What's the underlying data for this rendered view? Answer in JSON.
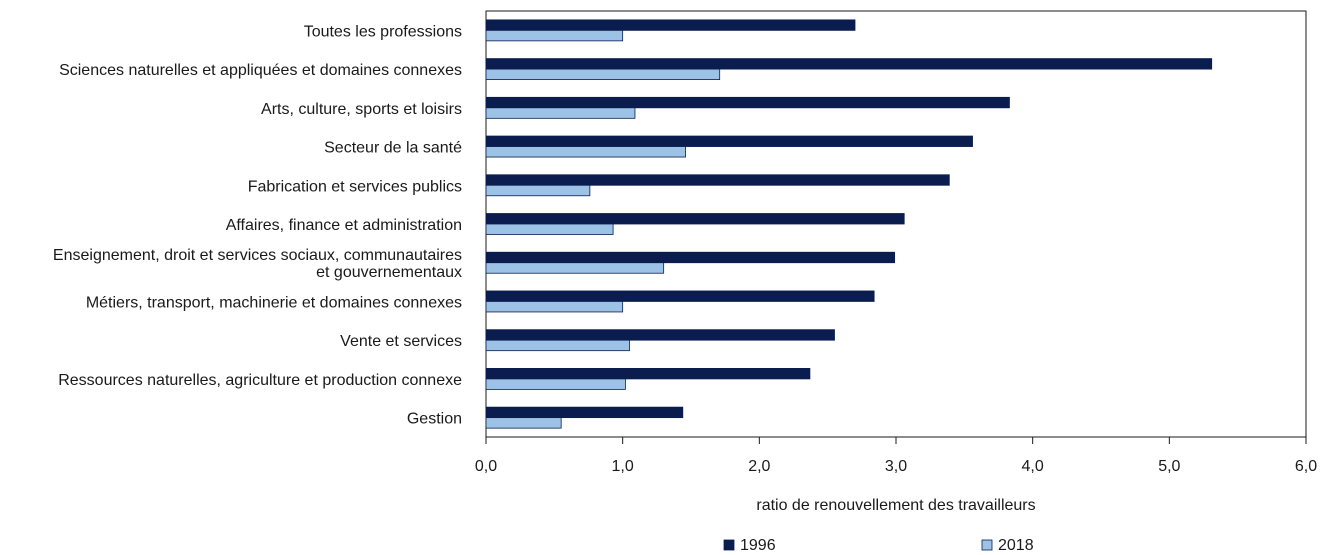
{
  "chart_data": {
    "type": "bar",
    "orientation": "horizontal",
    "categories": [
      [
        "Toutes les professions"
      ],
      [
        "Sciences naturelles et appliquées et domaines connexes"
      ],
      [
        "Arts, culture, sports et loisirs"
      ],
      [
        "Secteur de la santé"
      ],
      [
        "Fabrication et services publics"
      ],
      [
        "Affaires, finance et administration"
      ],
      [
        "Enseignement, droit et services sociaux, communautaires",
        "et gouvernementaux"
      ],
      [
        "Métiers, transport, machinerie et domaines connexes"
      ],
      [
        "Vente et services"
      ],
      [
        "Ressources naturelles, agriculture et production connexe"
      ],
      [
        "Gestion"
      ]
    ],
    "series": [
      {
        "name": "1996",
        "color": "#0b1d4f",
        "values": [
          2.7,
          5.31,
          3.83,
          3.56,
          3.39,
          3.06,
          2.99,
          2.84,
          2.55,
          2.37,
          1.44
        ]
      },
      {
        "name": "2018",
        "color": "#9cc2e5",
        "values": [
          1.0,
          1.71,
          1.09,
          1.46,
          0.76,
          0.93,
          1.3,
          1.0,
          1.05,
          1.02,
          0.55
        ]
      }
    ],
    "xlim": [
      0,
      6
    ],
    "xticks": [
      "0,0",
      "1,0",
      "2,0",
      "3,0",
      "4,0",
      "5,0",
      "6,0"
    ],
    "xlabel": "ratio de renouvellement des travailleurs",
    "ylabel": "",
    "title": "",
    "grid": false,
    "legend_position": "bottom"
  }
}
